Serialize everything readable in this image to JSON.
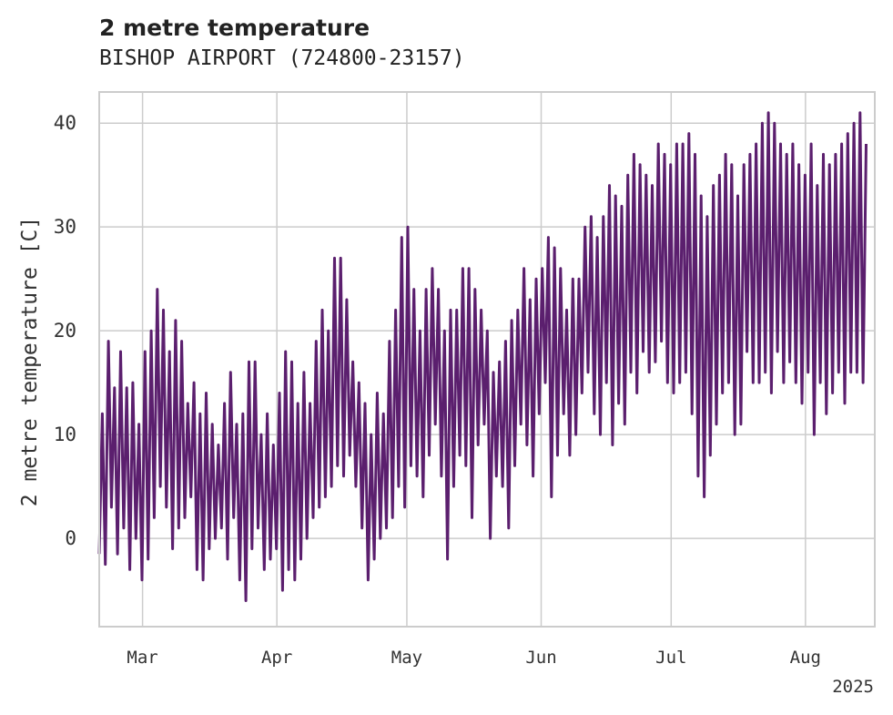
{
  "chart_data": {
    "type": "line",
    "title": "2 metre temperature",
    "subtitle": "BISHOP AIRPORT (724800-23157)",
    "xlabel": "",
    "ylabel": "2 metre temperature [C]",
    "x_tick_labels": [
      "Mar",
      "Apr",
      "May",
      "Jun",
      "Jul",
      "Aug"
    ],
    "x_tick_dates": [
      "2025-03-01",
      "2025-04-01",
      "2025-05-01",
      "2025-06-01",
      "2025-07-01",
      "2025-08-01"
    ],
    "x_offset_label": "2025",
    "xlim": [
      "2025-02-19",
      "2025-08-17"
    ],
    "y_ticks": [
      0,
      10,
      20,
      30,
      40
    ],
    "ylim": [
      -8.5,
      43
    ],
    "grid": true,
    "line_color": "#5b1f6e",
    "series": [
      {
        "x_start": "2025-02-19",
        "x_end": "2025-08-15",
        "sampling": "daily minimum and maximum",
        "values": [
          -1.5,
          12,
          -2.5,
          19,
          3,
          14.5,
          -1.5,
          18,
          1,
          14.5,
          -3,
          15,
          0,
          11,
          -4,
          18,
          -2,
          20,
          2,
          24,
          5,
          22,
          3,
          18,
          -1,
          21,
          1,
          19,
          2,
          13,
          4,
          15,
          -3,
          12,
          -4,
          14,
          -1,
          11,
          0,
          9,
          1,
          13,
          -2,
          16,
          2,
          11,
          -4,
          12,
          -6,
          17,
          -1,
          17,
          1,
          10,
          -3,
          12,
          -2,
          9,
          -1,
          14,
          -5,
          18,
          -3,
          17,
          -4,
          13,
          -2,
          16,
          0,
          13,
          2,
          19,
          3,
          22,
          4,
          20,
          5,
          27,
          7,
          27,
          6,
          23,
          8,
          17,
          5,
          15,
          1,
          13,
          -4,
          10,
          -2,
          14,
          0,
          12,
          1,
          19,
          2,
          22,
          5,
          29,
          3,
          30,
          7,
          24,
          6,
          20,
          4,
          24,
          8,
          26,
          11,
          24,
          6,
          20,
          -2,
          22,
          5,
          22,
          8,
          26,
          7,
          26,
          2,
          24,
          9,
          22,
          11,
          20,
          0,
          16,
          6,
          17,
          5,
          19,
          1,
          21,
          7,
          22,
          11,
          26,
          9,
          23,
          6,
          25,
          12,
          26,
          15,
          29,
          4,
          28,
          8,
          26,
          12,
          22,
          8,
          25,
          10,
          25,
          14,
          30,
          16,
          31,
          12,
          29,
          10,
          31,
          15,
          34,
          9,
          33,
          13,
          32,
          11,
          35,
          16,
          37,
          14,
          36,
          18,
          35,
          16,
          34,
          17,
          38,
          19,
          37,
          15,
          36,
          14,
          38,
          15,
          38,
          16,
          39,
          12,
          37,
          6,
          33,
          4,
          31,
          8,
          34,
          11,
          35,
          14,
          37,
          15,
          36,
          10,
          33,
          11,
          36,
          18,
          37,
          15,
          38,
          15,
          40,
          16,
          41,
          14,
          40,
          18,
          38,
          15,
          37,
          17,
          38,
          15,
          36,
          13,
          35,
          16,
          38,
          10,
          34,
          15,
          37,
          12,
          36,
          14,
          37,
          16,
          38,
          13,
          39,
          16,
          40,
          16,
          41,
          15,
          38
        ]
      }
    ]
  }
}
